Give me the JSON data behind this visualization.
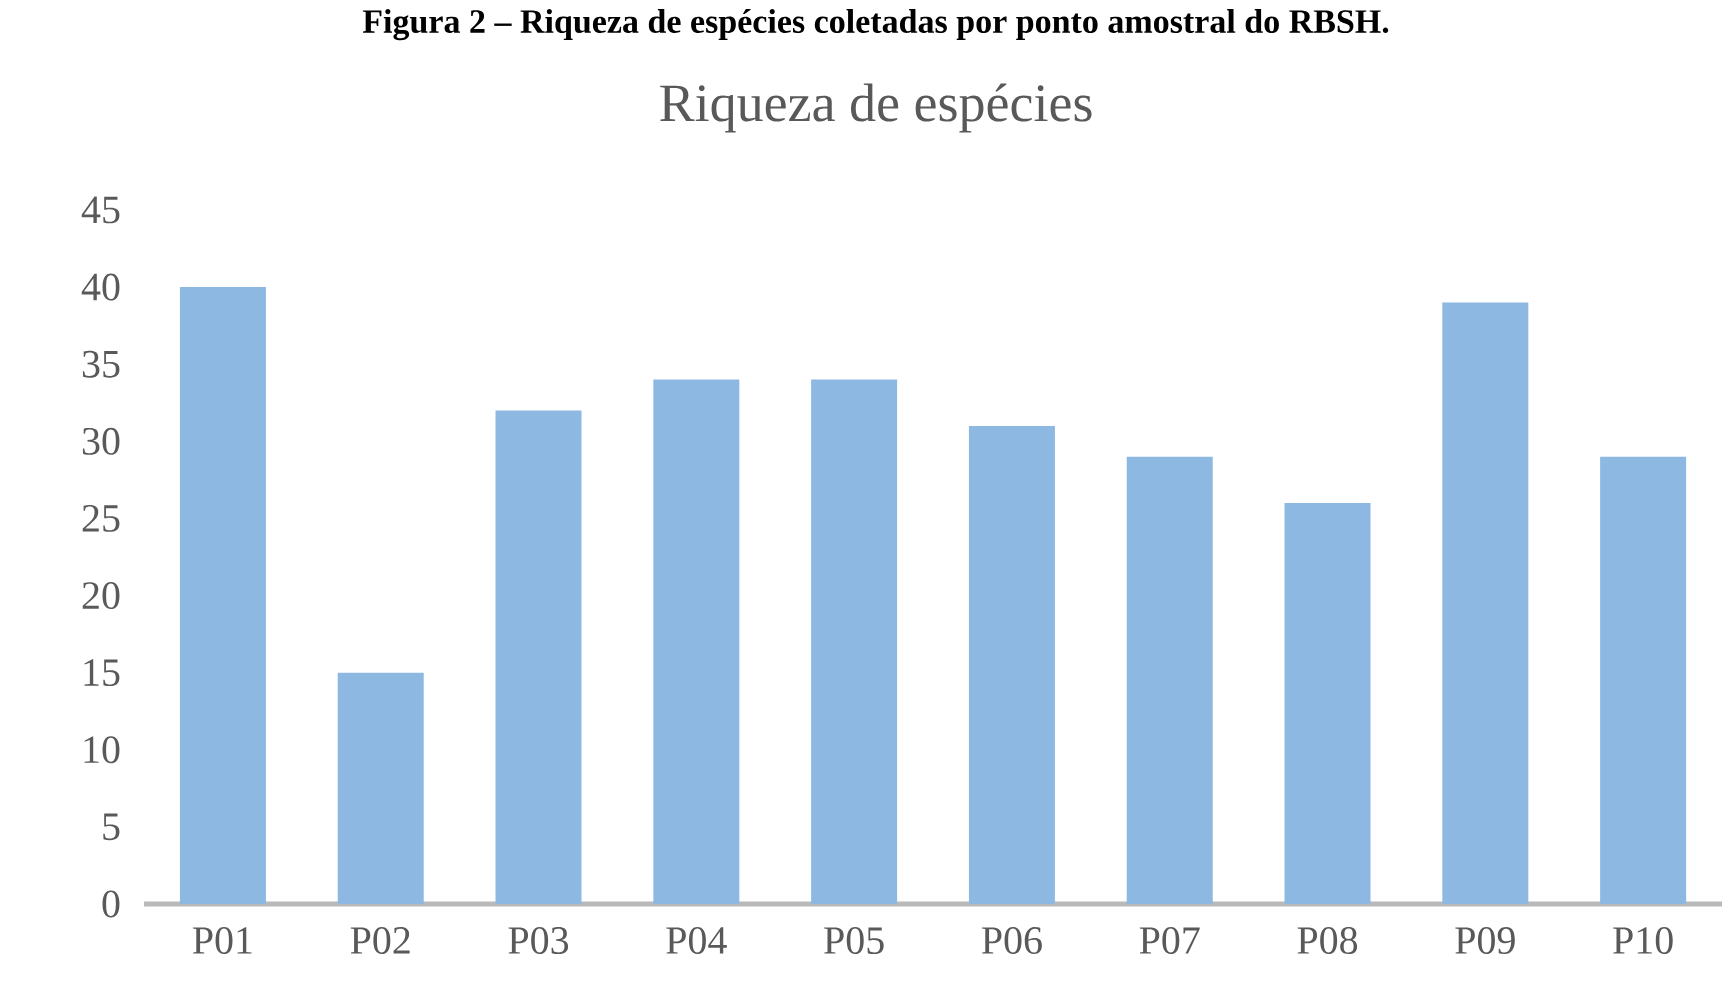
{
  "chart_data": {
    "type": "bar",
    "title": "Riqueza de espécies",
    "annotations": [
      "Figura 2 – Riqueza de espécies coletadas por ponto amostral do RBSH."
    ],
    "categories": [
      "P01",
      "P02",
      "P03",
      "P04",
      "P05",
      "P06",
      "P07",
      "P08",
      "P09",
      "P10"
    ],
    "values": [
      40,
      15,
      32,
      34,
      34,
      31,
      29,
      26,
      39,
      29
    ],
    "color": "#8db8e2",
    "ylim": [
      0,
      45
    ],
    "yticks": [
      0,
      5,
      10,
      15,
      20,
      25,
      30,
      35,
      40,
      45
    ]
  }
}
